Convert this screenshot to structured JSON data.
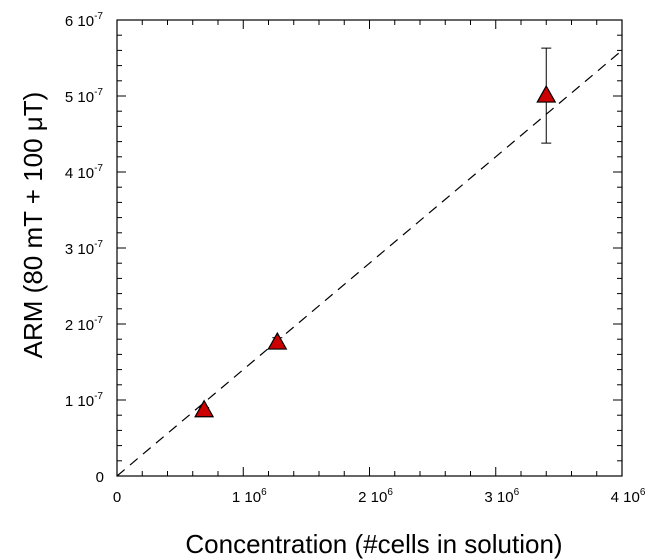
{
  "chart_data": {
    "type": "scatter",
    "xlabel": "Concentration (#cells in solution)",
    "ylabel": "ARM (80 mT + 100 μT)",
    "xlim": [
      0,
      4000000
    ],
    "ylim": [
      0,
      6e-07
    ],
    "x_ticks": [
      {
        "value": 0,
        "mantissa": "0",
        "exp": ""
      },
      {
        "value": 1000000,
        "mantissa": "1 10",
        "exp": "6"
      },
      {
        "value": 2000000,
        "mantissa": "2 10",
        "exp": "6"
      },
      {
        "value": 3000000,
        "mantissa": "3 10",
        "exp": "6"
      },
      {
        "value": 4000000,
        "mantissa": "4 10",
        "exp": "6"
      }
    ],
    "y_ticks": [
      {
        "value": 0,
        "mantissa": "0",
        "exp": ""
      },
      {
        "value": 1e-07,
        "mantissa": "1 10",
        "exp": "-7"
      },
      {
        "value": 2e-07,
        "mantissa": "2 10",
        "exp": "-7"
      },
      {
        "value": 3e-07,
        "mantissa": "3 10",
        "exp": "-7"
      },
      {
        "value": 4e-07,
        "mantissa": "4 10",
        "exp": "-7"
      },
      {
        "value": 5e-07,
        "mantissa": "5 10",
        "exp": "-7"
      },
      {
        "value": 6e-07,
        "mantissa": "6 10",
        "exp": "-7"
      }
    ],
    "points": [
      {
        "x": 690000,
        "y": 8.6e-08,
        "err_low": 8.2e-08,
        "err_high": 9e-08
      },
      {
        "x": 1270000,
        "y": 1.75e-07,
        "err_low": 1.68e-07,
        "err_high": 1.82e-07
      },
      {
        "x": 3400000,
        "y": 5e-07,
        "err_low": 4.38e-07,
        "err_high": 5.63e-07
      }
    ],
    "fit_line": {
      "slope": 1.4e-13,
      "intercept": 0,
      "style": "dashed"
    },
    "marker": {
      "shape": "triangle",
      "fill": "#cc0000",
      "stroke": "#000000"
    },
    "minor_ticks_x": 5,
    "minor_ticks_y": 5,
    "grid": false,
    "legend": false
  }
}
